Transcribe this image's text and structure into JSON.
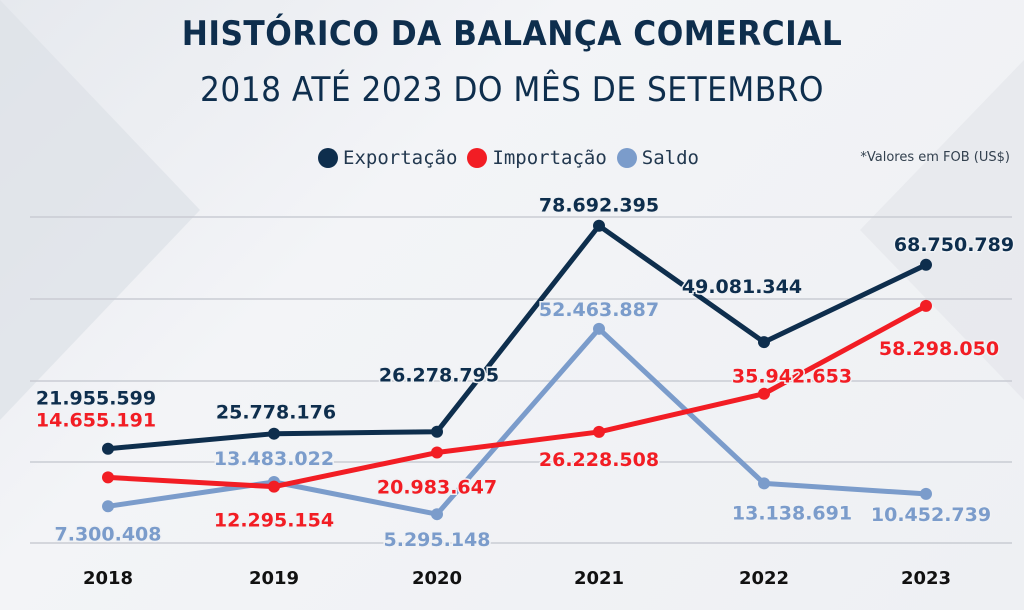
{
  "header": {
    "title": "HISTÓRICO DA BALANÇA COMERCIAL",
    "subtitle": "2018 ATÉ 2023 DO MÊS DE SETEMBRO",
    "note": "*Valores em FOB (US$)"
  },
  "colors": {
    "exportacao": "#0e2e4d",
    "importacao": "#f21d24",
    "saldo": "#7b9ccb",
    "grid": "#c9ccd3"
  },
  "chart_data": {
    "type": "line",
    "categories": [
      "2018",
      "2019",
      "2020",
      "2021",
      "2022",
      "2023"
    ],
    "series": [
      {
        "name": "Exportação",
        "key": "exportacao",
        "values": [
          21955599,
          25778176,
          26278795,
          78692395,
          49081344,
          68750789
        ],
        "labels": [
          "21.955.599",
          "25.778.176",
          "26.278.795",
          "78.692.395",
          "49.081.344",
          "68.750.789"
        ]
      },
      {
        "name": "Importação",
        "key": "importacao",
        "values": [
          14655191,
          12295154,
          20983647,
          26228508,
          35942653,
          58298050
        ],
        "labels": [
          "14.655.191",
          "12.295.154",
          "20.983.647",
          "26.228.508",
          "35.942.653",
          "58.298.050"
        ]
      },
      {
        "name": "Saldo",
        "key": "saldo",
        "values": [
          7300408,
          13483022,
          5295148,
          52463887,
          13138691,
          10452739
        ],
        "labels": [
          "7.300.408",
          "13.483.022",
          "5.295.148",
          "52.463.887",
          "13.138.691",
          "10.452.739"
        ]
      }
    ],
    "legend_position": "top-center",
    "grid": true
  }
}
